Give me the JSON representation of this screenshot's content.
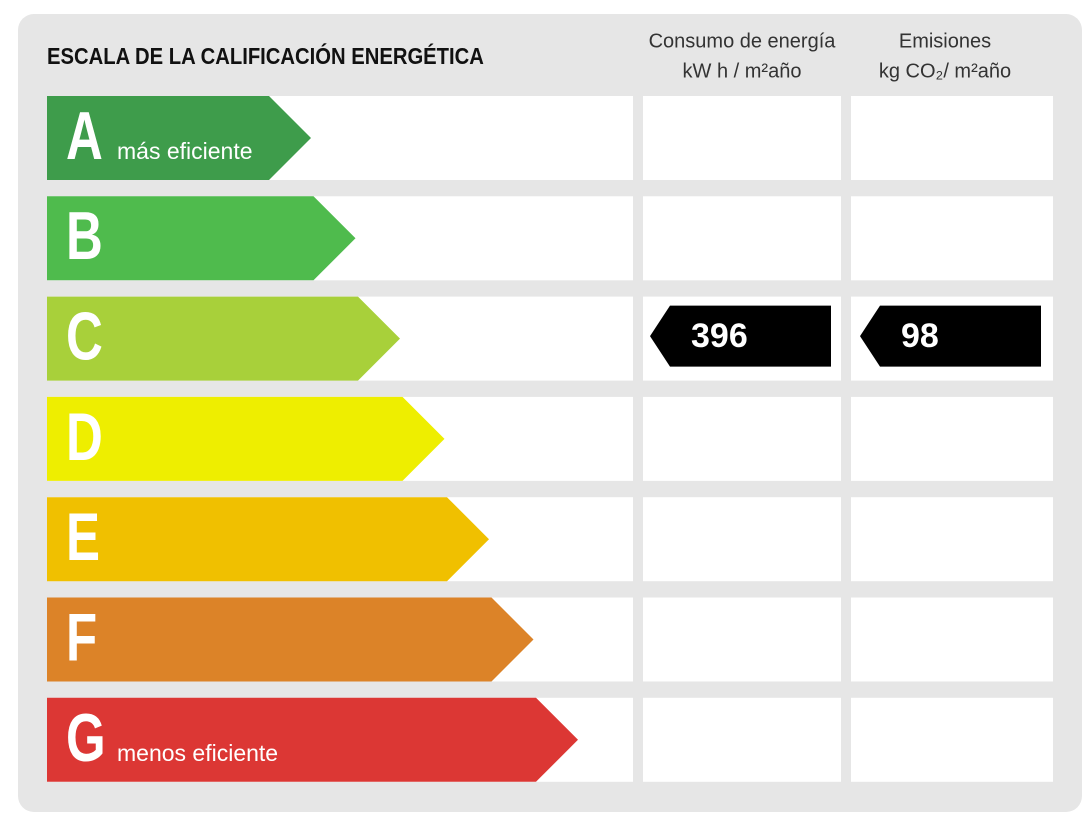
{
  "title": "ESCALA DE LA CALIFICACIÓN ENERGÉTICA",
  "columns": [
    {
      "line1": "Consumo de energía",
      "line2": "kW h / m²año"
    },
    {
      "line1": "Emisiones",
      "line2": "kg CO₂/ m²año"
    }
  ],
  "rows": [
    {
      "letter": "A",
      "label": "más eficiente",
      "color": "#3e9c4b"
    },
    {
      "letter": "B",
      "color": "#4fbb4d"
    },
    {
      "letter": "C",
      "color": "#a8d03a",
      "consumption": 396,
      "emissions": 98
    },
    {
      "letter": "D",
      "color": "#eeee00"
    },
    {
      "letter": "E",
      "color": "#f0c000"
    },
    {
      "letter": "F",
      "color": "#dc8328"
    },
    {
      "letter": "G",
      "label": "menos eficiente",
      "color": "#dc3734"
    }
  ]
}
